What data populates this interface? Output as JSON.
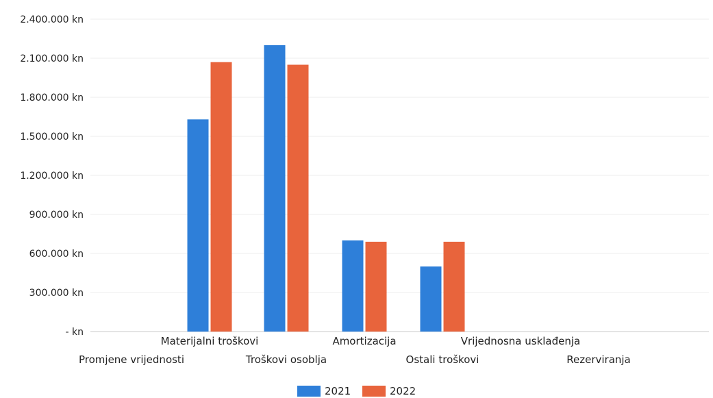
{
  "chart_data": {
    "type": "bar",
    "title": "",
    "xlabel": "",
    "ylabel": "",
    "ylim": [
      0,
      2400000
    ],
    "y_ticks": [
      0,
      300000,
      600000,
      900000,
      1200000,
      1500000,
      1800000,
      2100000,
      2400000
    ],
    "y_tick_labels": [
      "- kn",
      "300.000 kn",
      "600.000 kn",
      "900.000 kn",
      "1.200.000 kn",
      "1.500.000 kn",
      "1.800.000 kn",
      "2.100.000 kn",
      "2.400.000 kn"
    ],
    "categories": [
      "Promjene vrijednosti",
      "Materijalni troškovi",
      "Troškovi osoblja",
      "Amortizacija",
      "Ostali troškovi",
      "Vrijednosna usklađenja",
      "Rezerviranja"
    ],
    "series": [
      {
        "name": "2021",
        "color": "#2e7fd9",
        "values": [
          0,
          1630000,
          2200000,
          700000,
          500000,
          0,
          0
        ]
      },
      {
        "name": "2022",
        "color": "#e8643c",
        "values": [
          0,
          2070000,
          2050000,
          690000,
          690000,
          0,
          0
        ]
      }
    ],
    "grid": true,
    "legend_position": "bottom-center"
  }
}
